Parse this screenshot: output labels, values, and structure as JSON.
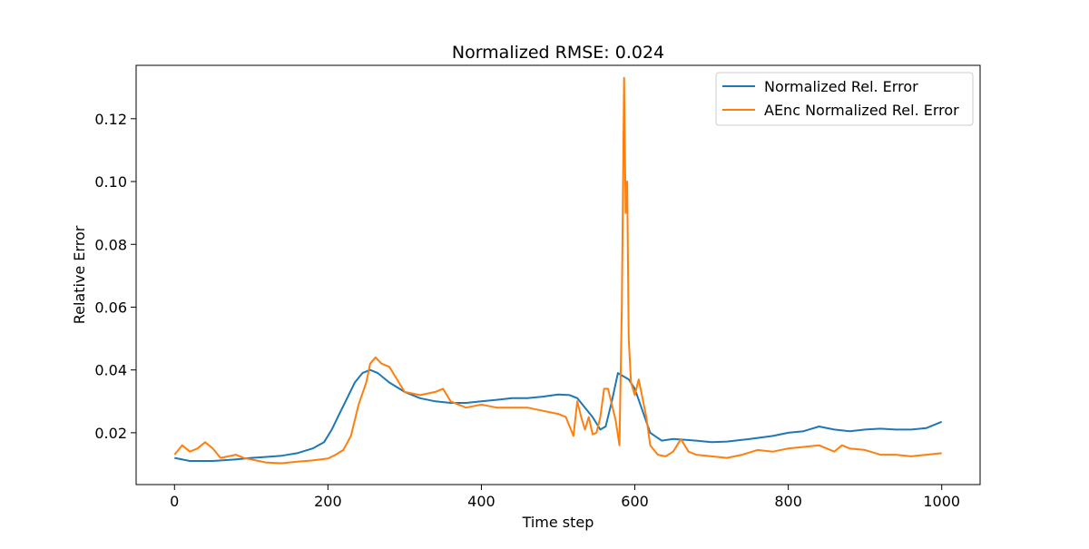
{
  "chart_data": {
    "type": "line",
    "title": "Normalized RMSE: 0.024",
    "xlabel": "Time step",
    "ylabel": "Relative Error",
    "xlim": [
      -50,
      1050
    ],
    "ylim": [
      0.0035,
      0.137
    ],
    "xticks": [
      0,
      200,
      400,
      600,
      800,
      1000
    ],
    "xtick_labels": [
      "0",
      "200",
      "400",
      "600",
      "800",
      "1000"
    ],
    "yticks": [
      0.02,
      0.04,
      0.06,
      0.08,
      0.1,
      0.12
    ],
    "ytick_labels": [
      "0.02",
      "0.04",
      "0.06",
      "0.08",
      "0.10",
      "0.12"
    ],
    "grid": false,
    "legend_position": "upper right",
    "series": [
      {
        "name": "Normalized Rel. Error",
        "color": "#1f77b4",
        "x": [
          0,
          20,
          50,
          80,
          100,
          120,
          140,
          160,
          180,
          195,
          205,
          215,
          225,
          235,
          245,
          255,
          265,
          280,
          300,
          320,
          340,
          360,
          380,
          400,
          420,
          440,
          460,
          480,
          500,
          515,
          525,
          535,
          545,
          555,
          562,
          570,
          578,
          585,
          592,
          600,
          610,
          620,
          635,
          650,
          680,
          700,
          720,
          750,
          780,
          800,
          820,
          840,
          860,
          880,
          900,
          920,
          940,
          960,
          980,
          1000
        ],
        "y": [
          0.012,
          0.011,
          0.011,
          0.0115,
          0.012,
          0.0123,
          0.0127,
          0.0135,
          0.015,
          0.017,
          0.021,
          0.026,
          0.031,
          0.036,
          0.039,
          0.04,
          0.039,
          0.036,
          0.033,
          0.031,
          0.03,
          0.0295,
          0.0295,
          0.03,
          0.0305,
          0.031,
          0.031,
          0.0315,
          0.0322,
          0.032,
          0.031,
          0.028,
          0.025,
          0.021,
          0.022,
          0.03,
          0.039,
          0.038,
          0.037,
          0.034,
          0.027,
          0.02,
          0.0175,
          0.018,
          0.0175,
          0.017,
          0.0172,
          0.018,
          0.019,
          0.02,
          0.0205,
          0.022,
          0.021,
          0.0205,
          0.021,
          0.0213,
          0.021,
          0.021,
          0.0215,
          0.0235
        ]
      },
      {
        "name": "AEnc Normalized Rel. Error",
        "color": "#ff7f0e",
        "x": [
          0,
          10,
          20,
          30,
          40,
          50,
          60,
          70,
          80,
          90,
          100,
          110,
          120,
          140,
          160,
          180,
          200,
          210,
          220,
          230,
          240,
          250,
          255,
          262,
          270,
          280,
          290,
          300,
          320,
          340,
          350,
          360,
          380,
          400,
          420,
          440,
          460,
          480,
          500,
          510,
          515,
          520,
          525,
          530,
          535,
          540,
          545,
          550,
          555,
          560,
          565,
          570,
          575,
          580,
          583,
          586,
          588,
          590,
          592,
          595,
          600,
          605,
          610,
          615,
          620,
          630,
          640,
          650,
          660,
          665,
          670,
          680,
          700,
          720,
          740,
          760,
          780,
          800,
          820,
          840,
          860,
          870,
          880,
          900,
          920,
          940,
          960,
          980,
          1000
        ],
        "y": [
          0.013,
          0.016,
          0.014,
          0.015,
          0.017,
          0.015,
          0.012,
          0.0125,
          0.013,
          0.012,
          0.0115,
          0.011,
          0.0105,
          0.0103,
          0.0108,
          0.0112,
          0.0118,
          0.013,
          0.0145,
          0.019,
          0.029,
          0.036,
          0.042,
          0.044,
          0.042,
          0.041,
          0.037,
          0.033,
          0.032,
          0.033,
          0.034,
          0.03,
          0.028,
          0.029,
          0.028,
          0.028,
          0.028,
          0.027,
          0.026,
          0.025,
          0.022,
          0.019,
          0.03,
          0.025,
          0.021,
          0.025,
          0.0195,
          0.02,
          0.025,
          0.034,
          0.034,
          0.029,
          0.024,
          0.016,
          0.06,
          0.133,
          0.09,
          0.1,
          0.05,
          0.036,
          0.032,
          0.037,
          0.031,
          0.025,
          0.016,
          0.013,
          0.0125,
          0.014,
          0.018,
          0.016,
          0.014,
          0.013,
          0.0125,
          0.012,
          0.013,
          0.0145,
          0.014,
          0.015,
          0.0155,
          0.016,
          0.014,
          0.016,
          0.015,
          0.0145,
          0.013,
          0.013,
          0.0125,
          0.013,
          0.0135
        ]
      }
    ]
  }
}
